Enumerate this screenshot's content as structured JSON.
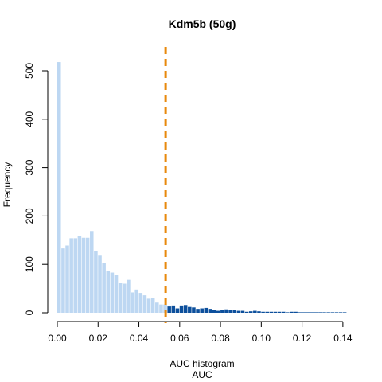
{
  "chart_data": {
    "type": "bar",
    "title": "Kdm5b (50g)",
    "xlabel_line1": "AUC histogram",
    "xlabel_line2": "AUC",
    "ylabel": "Frequency",
    "xlim": [
      0,
      0.142
    ],
    "ylim": [
      0,
      520
    ],
    "x_ticks": [
      "0.00",
      "0.02",
      "0.04",
      "0.06",
      "0.08",
      "0.10",
      "0.12",
      "0.14"
    ],
    "x_tick_values": [
      0,
      0.02,
      0.04,
      0.06,
      0.08,
      0.1,
      0.12,
      0.14
    ],
    "y_ticks": [
      "0",
      "100",
      "200",
      "300",
      "400",
      "500"
    ],
    "y_tick_values": [
      0,
      100,
      200,
      300,
      400,
      500
    ],
    "bin_width": 0.002,
    "bin_start": 0,
    "values": [
      518,
      133,
      139,
      154,
      154,
      159,
      155,
      155,
      169,
      128,
      118,
      102,
      86,
      83,
      78,
      62,
      60,
      68,
      42,
      48,
      41,
      36,
      29,
      30,
      21,
      17,
      17,
      13,
      15,
      9,
      15,
      16,
      12,
      11,
      8,
      9,
      10,
      8,
      6,
      4,
      6,
      7,
      6,
      5,
      4,
      4,
      2,
      3,
      4,
      3,
      2,
      2,
      2,
      2,
      2,
      2,
      1,
      2,
      2,
      1,
      1,
      1,
      1,
      1,
      1,
      1,
      1,
      1,
      1,
      1,
      1
    ],
    "threshold": 0.0531,
    "colors": {
      "below_threshold": "#bdd7f2",
      "above_threshold": "#0c4f9c",
      "threshold_line": "#e8890c",
      "axis": "#000000"
    }
  }
}
